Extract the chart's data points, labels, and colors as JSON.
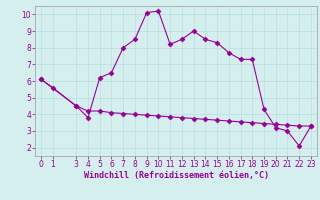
{
  "xlabel": "Windchill (Refroidissement éolien,°C)",
  "bg_color": "#d5efef",
  "grid_color": "#b8dede",
  "line_color": "#990099",
  "xlim": [
    -0.5,
    23.5
  ],
  "ylim": [
    1.5,
    10.5
  ],
  "xticks": [
    0,
    1,
    3,
    4,
    5,
    6,
    7,
    8,
    9,
    10,
    11,
    12,
    13,
    14,
    15,
    16,
    17,
    18,
    19,
    20,
    21,
    22,
    23
  ],
  "yticks": [
    2,
    3,
    4,
    5,
    6,
    7,
    8,
    9,
    10
  ],
  "line1_x": [
    0,
    1,
    3,
    4,
    5,
    6,
    7,
    8,
    9,
    10,
    11,
    12,
    13,
    14,
    15,
    16,
    17,
    18,
    19,
    20,
    21,
    22,
    23
  ],
  "line1_y": [
    6.1,
    5.6,
    4.5,
    3.8,
    6.2,
    6.5,
    8.0,
    8.5,
    10.1,
    10.2,
    8.2,
    8.5,
    9.0,
    8.5,
    8.3,
    7.7,
    7.3,
    7.3,
    4.3,
    3.2,
    3.0,
    2.1,
    3.3
  ],
  "line2_x": [
    0,
    3,
    4,
    5,
    6,
    7,
    8,
    9,
    10,
    11,
    12,
    13,
    14,
    15,
    16,
    17,
    18,
    19,
    20,
    21,
    22,
    23
  ],
  "line2_y": [
    6.1,
    4.5,
    4.2,
    4.2,
    4.1,
    4.05,
    4.0,
    3.95,
    3.9,
    3.85,
    3.8,
    3.75,
    3.7,
    3.65,
    3.6,
    3.55,
    3.5,
    3.45,
    3.4,
    3.35,
    3.3,
    3.3
  ],
  "marker": "D",
  "markersize": 2.5,
  "linewidth": 0.8,
  "tick_fontsize": 5.5,
  "label_fontsize": 6.0
}
